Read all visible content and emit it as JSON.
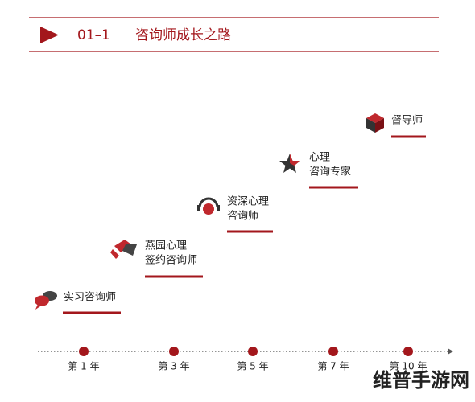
{
  "header": {
    "number": "01–1",
    "title": "咨询师成长之路"
  },
  "stages": [
    {
      "lines": [
        "实习咨询师"
      ]
    },
    {
      "lines": [
        "燕园心理",
        "签约咨询师"
      ]
    },
    {
      "lines": [
        "资深心理",
        "咨询师"
      ]
    },
    {
      "lines": [
        "心理",
        "咨询专家"
      ]
    },
    {
      "lines": [
        "督导师"
      ]
    }
  ],
  "timeline": [
    "第 1 年",
    "第 3 年",
    "第 5 年",
    "第 7 年",
    "第 10 年"
  ],
  "watermark": "维普手游网"
}
